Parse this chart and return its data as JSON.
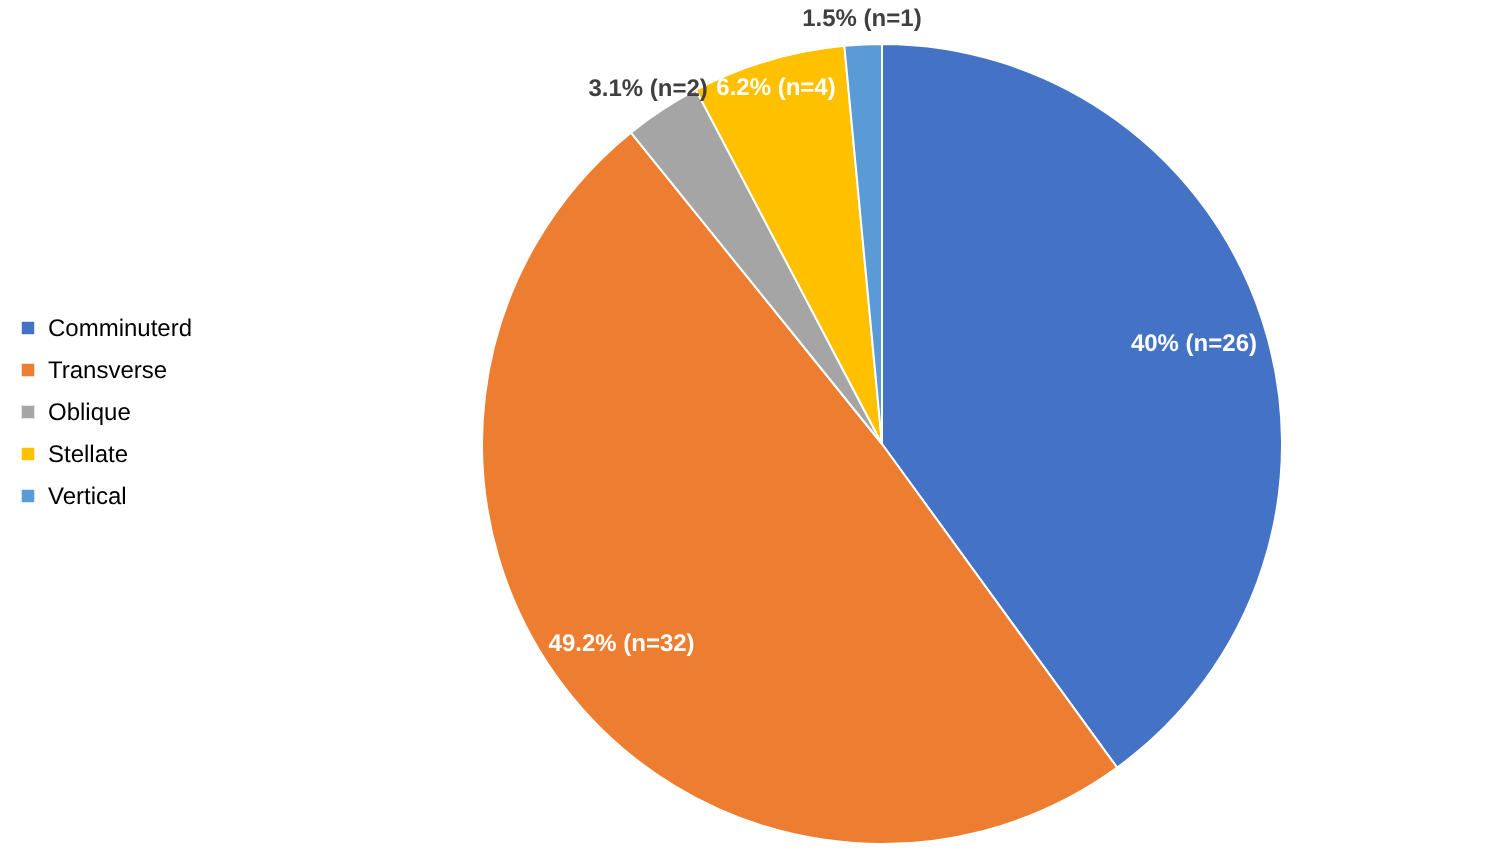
{
  "chart_data": {
    "type": "pie",
    "categories": [
      "Comminuterd",
      "Transverse",
      "Oblique",
      "Stellate",
      "Vertical"
    ],
    "values": [
      40,
      49.2,
      3.1,
      6.2,
      1.5
    ],
    "value_labels": [
      "40% (n=26)",
      "49.2% (n=32)",
      "3.1% (n=2)",
      "6.2% (n=4)",
      "1.5% (n=1)"
    ],
    "colors": [
      "#4472c4",
      "#ed7d31",
      "#a5a5a5",
      "#ffc000",
      "#5b9bd5"
    ],
    "legend": "left"
  }
}
